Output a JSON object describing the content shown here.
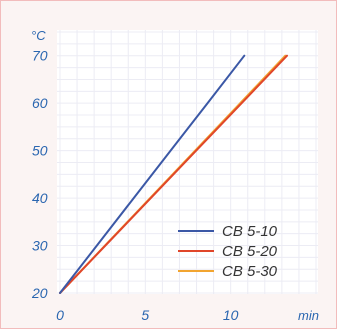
{
  "chart_data": {
    "type": "line",
    "title": "",
    "xlabel": "min",
    "ylabel": "°C",
    "xlim": [
      0,
      15
    ],
    "ylim": [
      20,
      75
    ],
    "xticks": [
      0,
      5,
      10
    ],
    "yticks": [
      20,
      30,
      40,
      50,
      60,
      70
    ],
    "grid": true,
    "legend_position": "bottom-right",
    "series": [
      {
        "name": "CB 5-10",
        "color": "#3b58a6",
        "x": [
          0,
          10.8
        ],
        "y": [
          20,
          70
        ]
      },
      {
        "name": "CB 5-20",
        "color": "#e0462a",
        "x": [
          0,
          13.3
        ],
        "y": [
          20,
          70
        ]
      },
      {
        "name": "CB 5-30",
        "color": "#f2a530",
        "x": [
          0,
          13.2
        ],
        "y": [
          20,
          70
        ]
      }
    ]
  }
}
